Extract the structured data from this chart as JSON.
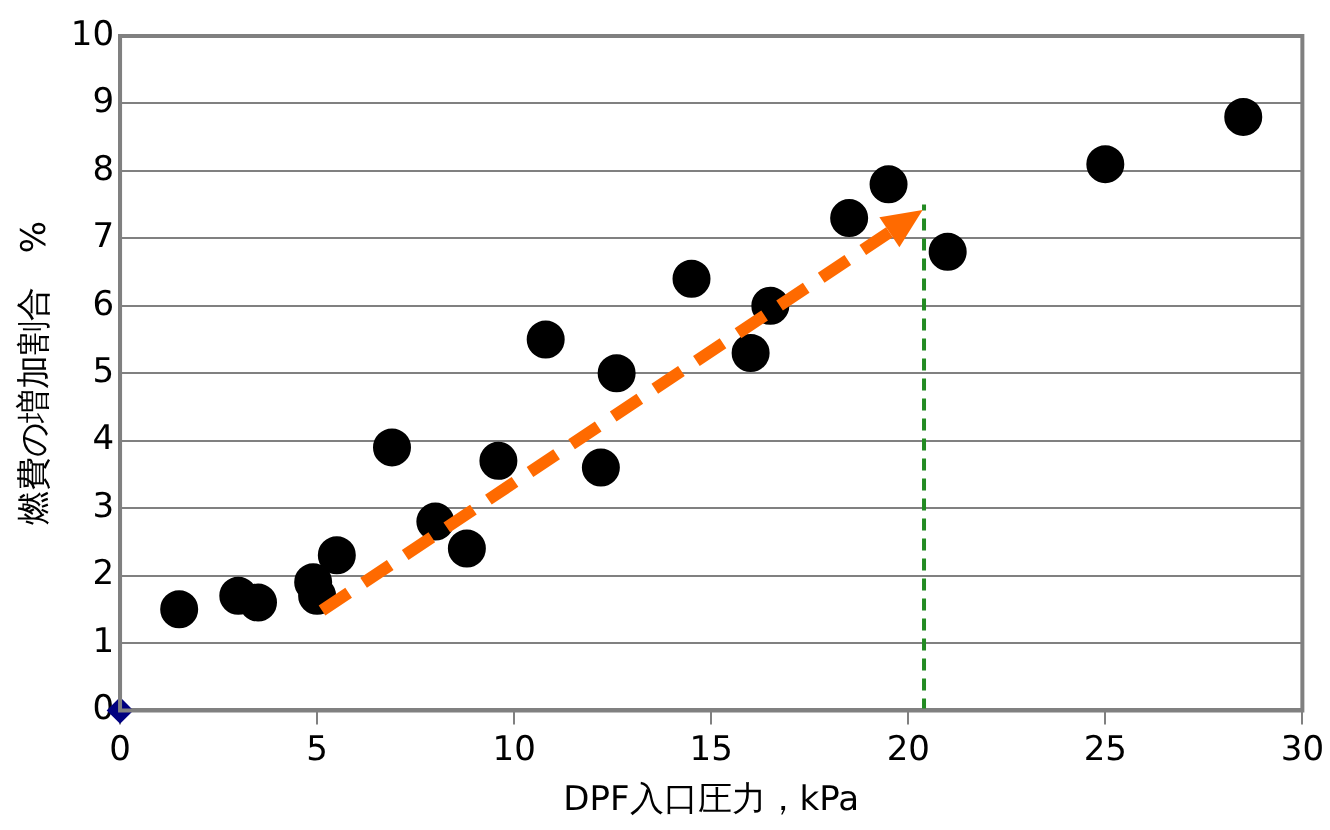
{
  "chart_data": {
    "type": "scatter",
    "xlabel": "DPF入口圧力，kPa",
    "ylabel": "燃費の増加割合　%",
    "xlim": [
      0,
      30
    ],
    "xticks": [
      0,
      5,
      10,
      15,
      20,
      25,
      30
    ],
    "ylim": [
      0,
      10
    ],
    "yticks": [
      0,
      1,
      2,
      3,
      4,
      5,
      6,
      7,
      8,
      9,
      10
    ],
    "grid": "y",
    "legend": false,
    "series": [
      {
        "color": "#000000",
        "marker": "circle",
        "x": [
          1.5,
          3,
          3.5,
          4.9,
          5,
          5.5,
          6.9,
          8,
          8.8,
          9.6,
          10.8,
          12.2,
          12.6,
          14.5,
          16,
          16.5,
          18.5,
          19.5,
          21,
          25,
          28.5
        ],
        "values": [
          1.5,
          1.7,
          1.6,
          1.9,
          1.7,
          2.3,
          3.9,
          2.8,
          2.4,
          3.7,
          5.5,
          3.6,
          5,
          6.4,
          5.3,
          6,
          7.3,
          7.8,
          6.8,
          8.1,
          8.8
        ]
      },
      {
        "color": "#000080",
        "marker": "diamond",
        "x": [
          0
        ],
        "values": [
          0
        ]
      },
      {
        "type": "line",
        "color": "#228b22",
        "marker": "none",
        "line_style": "dashed",
        "x": [
          20.4,
          20.4
        ],
        "values": [
          0,
          7.5
        ]
      }
    ]
  }
}
